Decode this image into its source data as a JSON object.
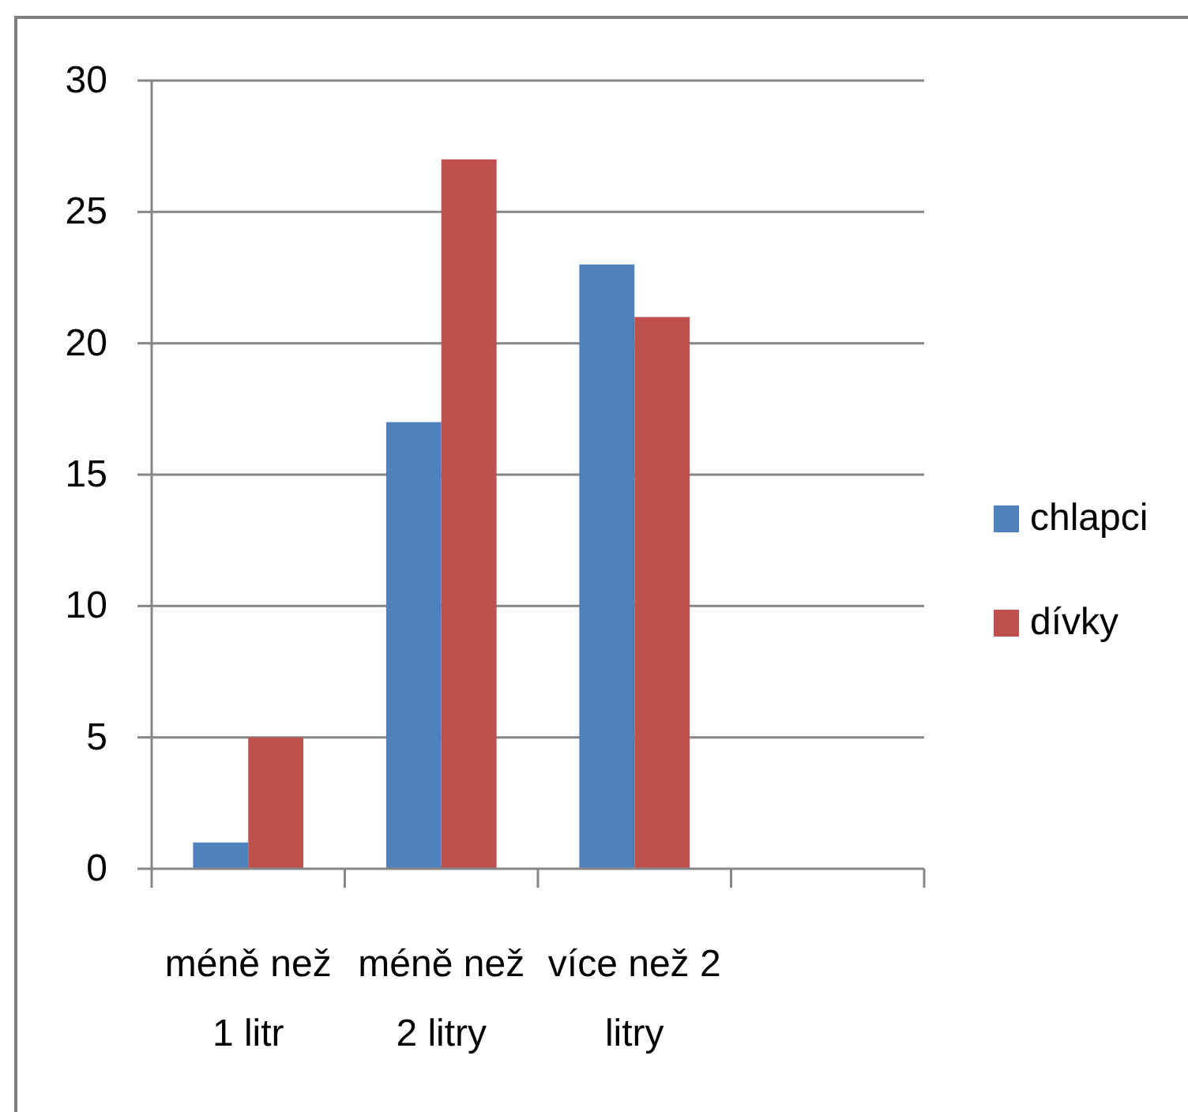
{
  "chart_data": {
    "type": "bar",
    "categories": [
      "méně než 1 litr",
      "méně než 2 litry",
      "více než 2 litry",
      null
    ],
    "series": [
      {
        "name": "chlapci",
        "color": "#4f81bd",
        "values": [
          1,
          17,
          23,
          null
        ]
      },
      {
        "name": "dívky",
        "color": "#c0504d",
        "values": [
          5,
          27,
          21,
          null
        ]
      }
    ],
    "ylim": [
      0,
      30
    ],
    "yticks": [
      0,
      5,
      10,
      15,
      20,
      25,
      30
    ],
    "grid": "y",
    "legend": "right"
  }
}
